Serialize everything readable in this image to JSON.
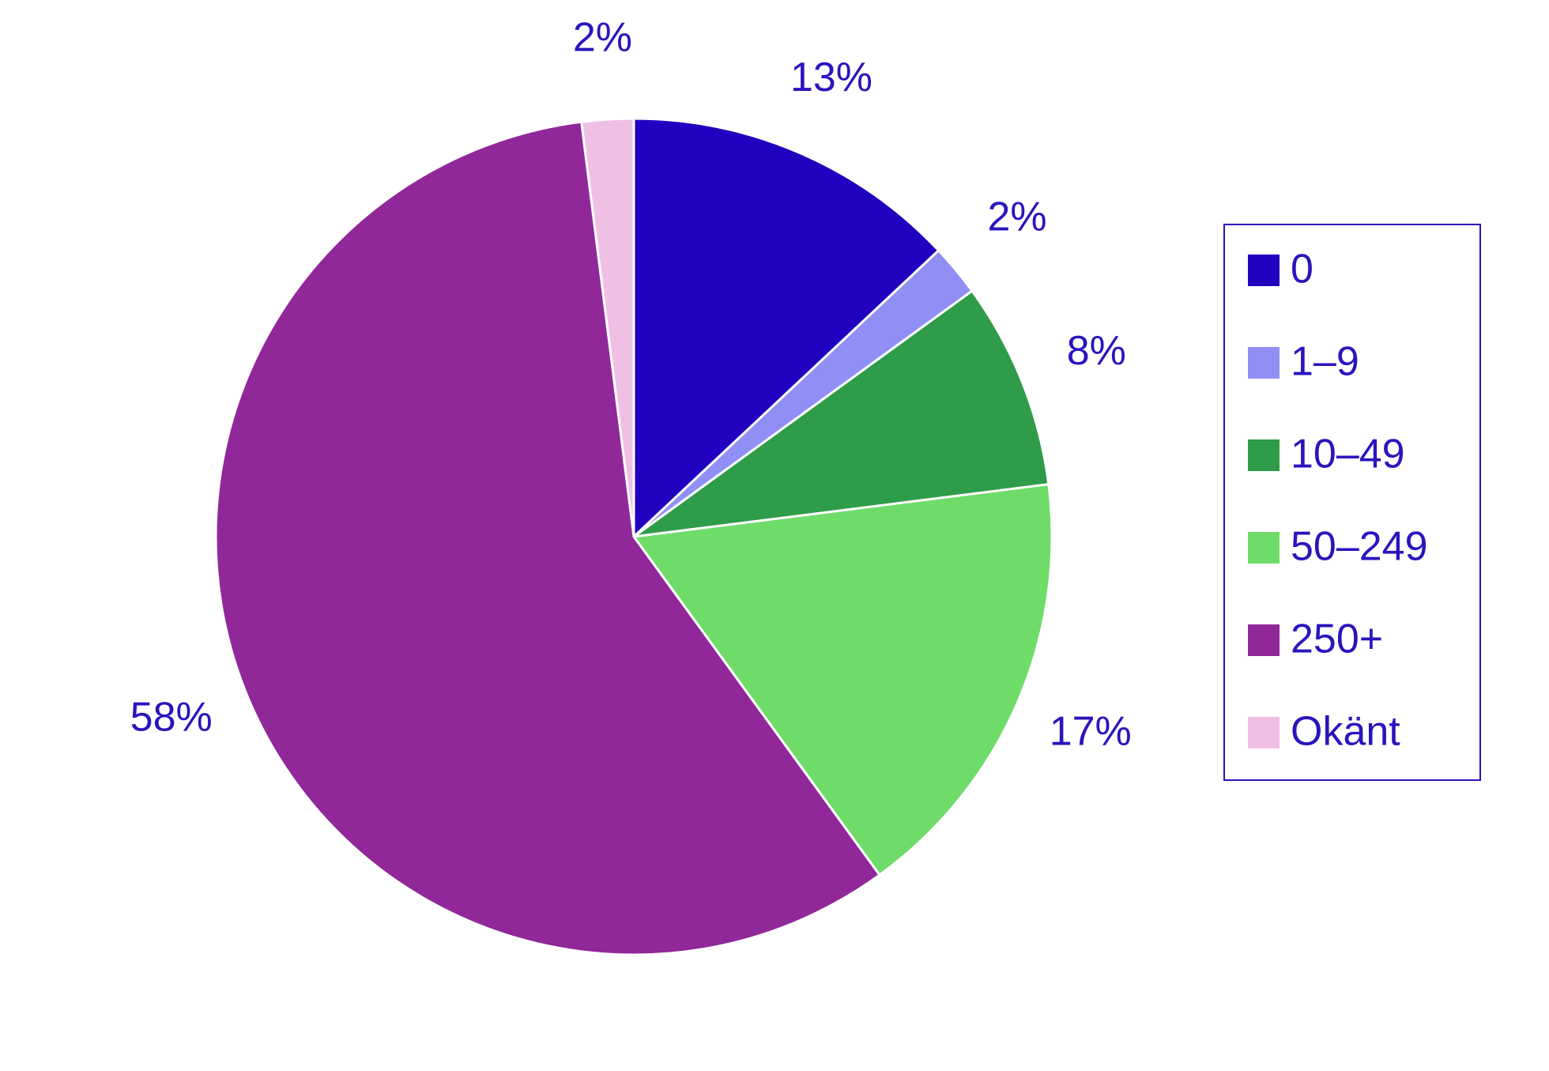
{
  "chart_data": {
    "type": "pie",
    "categories": [
      "0",
      "1–9",
      "10–49",
      "50–249",
      "250+",
      "Okänt"
    ],
    "values": [
      13,
      2,
      8,
      17,
      58,
      2
    ],
    "value_labels": [
      "13%",
      "2%",
      "8%",
      "17%",
      "58%",
      "2%"
    ],
    "colors": [
      "#2200bf",
      "#8f8ff5",
      "#2e9c48",
      "#6fdc6a",
      "#90289a",
      "#f0c0e4"
    ],
    "legend": "right"
  }
}
